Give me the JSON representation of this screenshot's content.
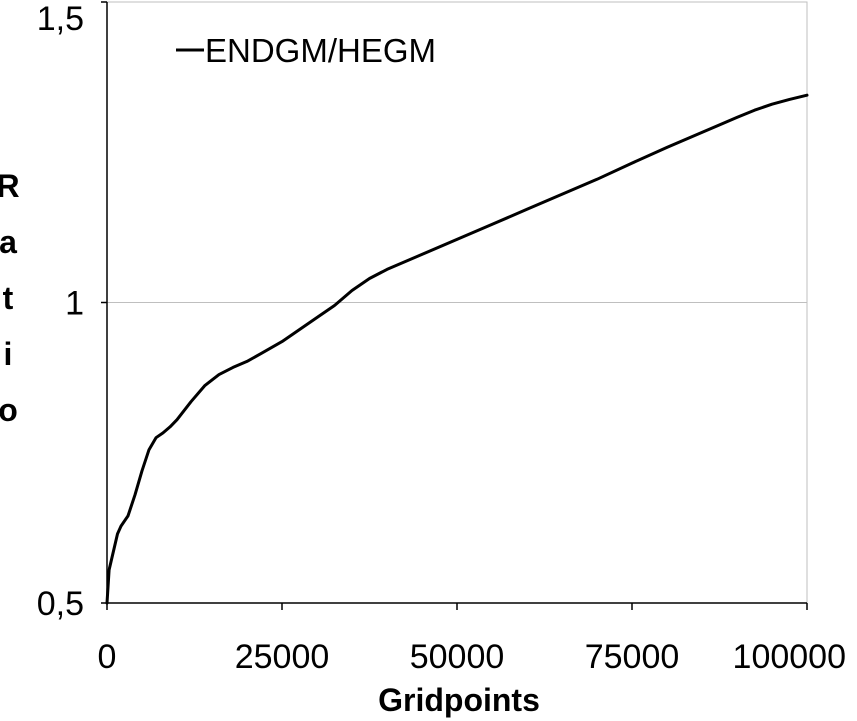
{
  "chart_data": {
    "type": "line",
    "title": "",
    "xlabel": "Gridpoints",
    "ylabel": "Ratio",
    "xlim": [
      0,
      100000
    ],
    "ylim": [
      0.5,
      1.5
    ],
    "x_ticks": [
      "0",
      "25000",
      "50000",
      "75000",
      "100000"
    ],
    "y_ticks": [
      "0,5",
      "1",
      "1,5"
    ],
    "grid": "horizontal at 1",
    "legend": "top-left",
    "colors": {
      "line": "#000000",
      "axis": "#000000",
      "gridline": "#bfbfbf",
      "background": "#ffffff"
    },
    "series": [
      {
        "name": "ENDGM/HEGM",
        "x": [
          0,
          300,
          600,
          1000,
          1500,
          2000,
          3000,
          4000,
          5000,
          6000,
          7000,
          8000,
          9000,
          10000,
          12000,
          14000,
          16000,
          18000,
          20000,
          22000,
          25000,
          30000,
          32500,
          35000,
          37500,
          40000,
          45000,
          50000,
          55000,
          60000,
          65000,
          70000,
          75000,
          80000,
          85000,
          90000,
          92500,
          95000,
          97500,
          100000
        ],
        "y": [
          0.5,
          0.555,
          0.57,
          0.59,
          0.615,
          0.628,
          0.645,
          0.68,
          0.72,
          0.755,
          0.775,
          0.783,
          0.793,
          0.805,
          0.835,
          0.862,
          0.88,
          0.892,
          0.902,
          0.915,
          0.935,
          0.975,
          0.995,
          1.02,
          1.04,
          1.055,
          1.08,
          1.105,
          1.13,
          1.155,
          1.18,
          1.205,
          1.232,
          1.258,
          1.283,
          1.308,
          1.32,
          1.33,
          1.338,
          1.345
        ]
      }
    ]
  }
}
